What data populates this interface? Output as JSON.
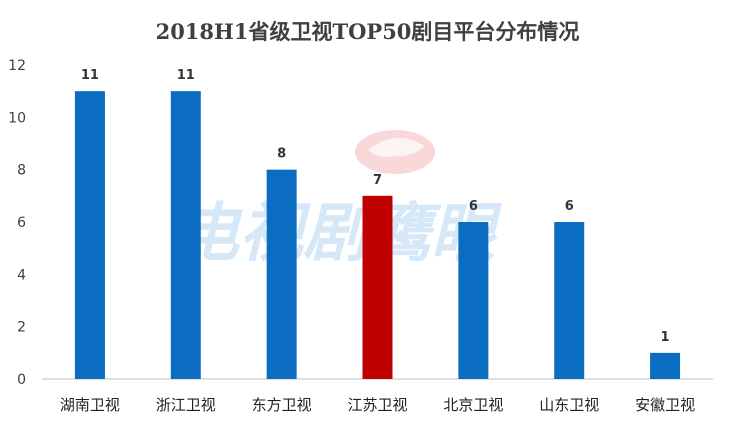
{
  "chart_data": {
    "type": "bar",
    "title": "2018H1省级卫视TOP50剧目平台分布情况",
    "categories": [
      "湖南卫视",
      "浙江卫视",
      "东方卫视",
      "江苏卫视",
      "北京卫视",
      "山东卫视",
      "安徽卫视"
    ],
    "values": [
      11,
      11,
      8,
      7,
      6,
      6,
      1
    ],
    "colors": [
      "#0A6DC1",
      "#0A6DC1",
      "#0A6DC1",
      "#C00000",
      "#0A6DC1",
      "#0A6DC1",
      "#0A6DC1"
    ],
    "ylim": [
      0,
      12
    ],
    "yticks": [
      0,
      2,
      4,
      6,
      8,
      10,
      12
    ],
    "grid": false,
    "legend": "none",
    "data_labels": true
  },
  "watermark": {
    "text": "电视剧鹰眼"
  }
}
